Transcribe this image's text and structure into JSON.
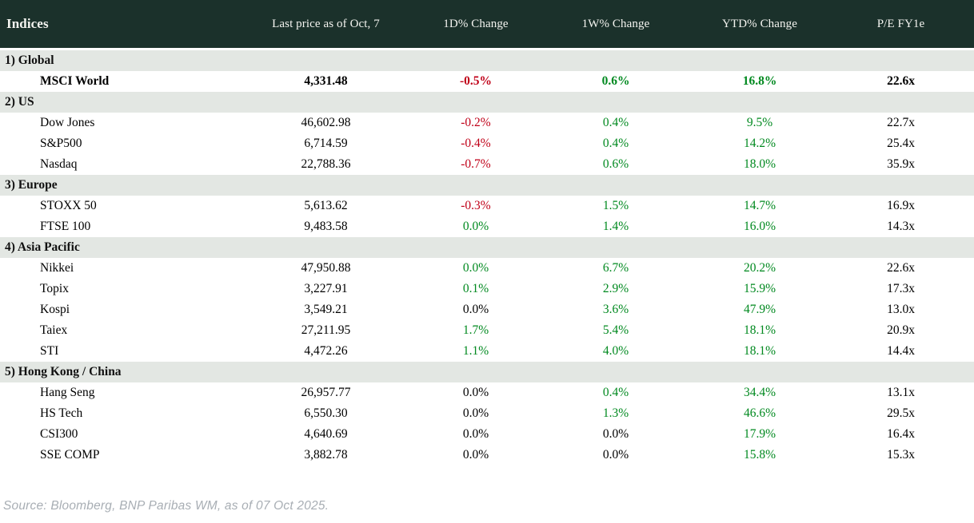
{
  "header": {
    "columns": [
      "Indices",
      "Last price as of Oct, 7",
      "1D% Change",
      "1W% Change",
      "YTD% Change",
      "P/E FY1e"
    ]
  },
  "sections": [
    {
      "label": "1) Global",
      "rows": [
        {
          "name": "MSCI World",
          "emphasis": true,
          "cells": [
            {
              "text": "4,331.48",
              "tone": "neutral"
            },
            {
              "text": "-0.5%",
              "tone": "negative"
            },
            {
              "text": "0.6%",
              "tone": "positive"
            },
            {
              "text": "16.8%",
              "tone": "positive"
            },
            {
              "text": "22.6x",
              "tone": "neutral"
            }
          ]
        }
      ]
    },
    {
      "label": "2) US",
      "rows": [
        {
          "name": "Dow Jones",
          "emphasis": false,
          "cells": [
            {
              "text": "46,602.98",
              "tone": "neutral"
            },
            {
              "text": "-0.2%",
              "tone": "negative"
            },
            {
              "text": "0.4%",
              "tone": "positive"
            },
            {
              "text": "9.5%",
              "tone": "positive"
            },
            {
              "text": "22.7x",
              "tone": "neutral"
            }
          ]
        },
        {
          "name": "S&P500",
          "emphasis": false,
          "cells": [
            {
              "text": "6,714.59",
              "tone": "neutral"
            },
            {
              "text": "-0.4%",
              "tone": "negative"
            },
            {
              "text": "0.4%",
              "tone": "positive"
            },
            {
              "text": "14.2%",
              "tone": "positive"
            },
            {
              "text": "25.4x",
              "tone": "neutral"
            }
          ]
        },
        {
          "name": "Nasdaq",
          "emphasis": false,
          "cells": [
            {
              "text": "22,788.36",
              "tone": "neutral"
            },
            {
              "text": "-0.7%",
              "tone": "negative"
            },
            {
              "text": "0.6%",
              "tone": "positive"
            },
            {
              "text": "18.0%",
              "tone": "positive"
            },
            {
              "text": "35.9x",
              "tone": "neutral"
            }
          ]
        }
      ]
    },
    {
      "label": "3) Europe",
      "rows": [
        {
          "name": "STOXX 50",
          "emphasis": false,
          "cells": [
            {
              "text": "5,613.62",
              "tone": "neutral"
            },
            {
              "text": "-0.3%",
              "tone": "negative"
            },
            {
              "text": "1.5%",
              "tone": "positive"
            },
            {
              "text": "14.7%",
              "tone": "positive"
            },
            {
              "text": "16.9x",
              "tone": "neutral"
            }
          ]
        },
        {
          "name": "FTSE 100",
          "emphasis": false,
          "cells": [
            {
              "text": "9,483.58",
              "tone": "neutral"
            },
            {
              "text": "0.0%",
              "tone": "positive"
            },
            {
              "text": "1.4%",
              "tone": "positive"
            },
            {
              "text": "16.0%",
              "tone": "positive"
            },
            {
              "text": "14.3x",
              "tone": "neutral"
            }
          ]
        }
      ]
    },
    {
      "label": "4) Asia Pacific",
      "rows": [
        {
          "name": "Nikkei",
          "emphasis": false,
          "cells": [
            {
              "text": "47,950.88",
              "tone": "neutral"
            },
            {
              "text": "0.0%",
              "tone": "positive"
            },
            {
              "text": "6.7%",
              "tone": "positive"
            },
            {
              "text": "20.2%",
              "tone": "positive"
            },
            {
              "text": "22.6x",
              "tone": "neutral"
            }
          ]
        },
        {
          "name": "Topix",
          "emphasis": false,
          "cells": [
            {
              "text": "3,227.91",
              "tone": "neutral"
            },
            {
              "text": "0.1%",
              "tone": "positive"
            },
            {
              "text": "2.9%",
              "tone": "positive"
            },
            {
              "text": "15.9%",
              "tone": "positive"
            },
            {
              "text": "17.3x",
              "tone": "neutral"
            }
          ]
        },
        {
          "name": "Kospi",
          "emphasis": false,
          "cells": [
            {
              "text": "3,549.21",
              "tone": "neutral"
            },
            {
              "text": "0.0%",
              "tone": "neutral"
            },
            {
              "text": "3.6%",
              "tone": "positive"
            },
            {
              "text": "47.9%",
              "tone": "positive"
            },
            {
              "text": "13.0x",
              "tone": "neutral"
            }
          ]
        },
        {
          "name": "Taiex",
          "emphasis": false,
          "cells": [
            {
              "text": "27,211.95",
              "tone": "neutral"
            },
            {
              "text": "1.7%",
              "tone": "positive"
            },
            {
              "text": "5.4%",
              "tone": "positive"
            },
            {
              "text": "18.1%",
              "tone": "positive"
            },
            {
              "text": "20.9x",
              "tone": "neutral"
            }
          ]
        },
        {
          "name": "STI",
          "emphasis": false,
          "cells": [
            {
              "text": "4,472.26",
              "tone": "neutral"
            },
            {
              "text": "1.1%",
              "tone": "positive"
            },
            {
              "text": "4.0%",
              "tone": "positive"
            },
            {
              "text": "18.1%",
              "tone": "positive"
            },
            {
              "text": "14.4x",
              "tone": "neutral"
            }
          ]
        }
      ]
    },
    {
      "label": "5) Hong Kong / China",
      "rows": [
        {
          "name": "Hang Seng",
          "emphasis": false,
          "cells": [
            {
              "text": "26,957.77",
              "tone": "neutral"
            },
            {
              "text": "0.0%",
              "tone": "neutral"
            },
            {
              "text": "0.4%",
              "tone": "positive"
            },
            {
              "text": "34.4%",
              "tone": "positive"
            },
            {
              "text": "13.1x",
              "tone": "neutral"
            }
          ]
        },
        {
          "name": "HS Tech",
          "emphasis": false,
          "cells": [
            {
              "text": "6,550.30",
              "tone": "neutral"
            },
            {
              "text": "0.0%",
              "tone": "neutral"
            },
            {
              "text": "1.3%",
              "tone": "positive"
            },
            {
              "text": "46.6%",
              "tone": "positive"
            },
            {
              "text": "29.5x",
              "tone": "neutral"
            }
          ]
        },
        {
          "name": "CSI300",
          "emphasis": false,
          "cells": [
            {
              "text": "4,640.69",
              "tone": "neutral"
            },
            {
              "text": "0.0%",
              "tone": "neutral"
            },
            {
              "text": "0.0%",
              "tone": "neutral"
            },
            {
              "text": "17.9%",
              "tone": "positive"
            },
            {
              "text": "16.4x",
              "tone": "neutral"
            }
          ]
        },
        {
          "name": "SSE COMP",
          "emphasis": false,
          "cells": [
            {
              "text": "3,882.78",
              "tone": "neutral"
            },
            {
              "text": "0.0%",
              "tone": "neutral"
            },
            {
              "text": "0.0%",
              "tone": "neutral"
            },
            {
              "text": "15.8%",
              "tone": "positive"
            },
            {
              "text": "15.3x",
              "tone": "neutral"
            }
          ]
        }
      ]
    }
  ],
  "footer": {
    "source": "Source: Bloomberg, BNP Paribas WM, as of 07 Oct 2025."
  },
  "colors": {
    "header_bg": "#1b312b",
    "section_bg": "#e3e7e3",
    "negative": "#c00018",
    "positive": "#00891f",
    "source_text": "#a8aeb4"
  }
}
